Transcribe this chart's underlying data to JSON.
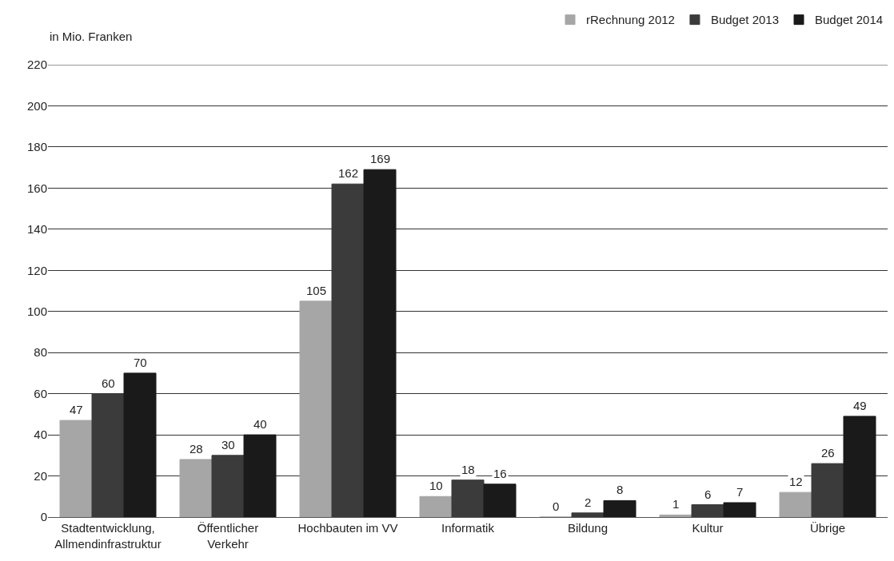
{
  "chart_data": {
    "type": "bar",
    "ylabel": "in Mio. Franken",
    "categories": [
      "Stadtentwicklung,\nAllmendinfrastruktur",
      "Öffentlicher\nVerkehr",
      "Hochbauten im VV",
      "Informatik",
      "Bildung",
      "Kultur",
      "Übrige"
    ],
    "series": [
      {
        "name": "rRechnung 2012",
        "color": "#a6a6a6",
        "values": [
          47,
          28,
          105,
          10,
          0,
          1,
          12
        ]
      },
      {
        "name": "Budget 2013",
        "color": "#3b3b3b",
        "values": [
          60,
          30,
          162,
          18,
          2,
          6,
          26
        ]
      },
      {
        "name": "Budget 2014",
        "color": "#1a1a1a",
        "values": [
          70,
          40,
          169,
          16,
          8,
          7,
          49
        ]
      }
    ],
    "ylim": [
      0,
      220
    ],
    "yticks": [
      0,
      20,
      40,
      60,
      80,
      100,
      120,
      140,
      160,
      180,
      200,
      220
    ],
    "grid": "y",
    "legend": "top right",
    "data_labels": true
  }
}
